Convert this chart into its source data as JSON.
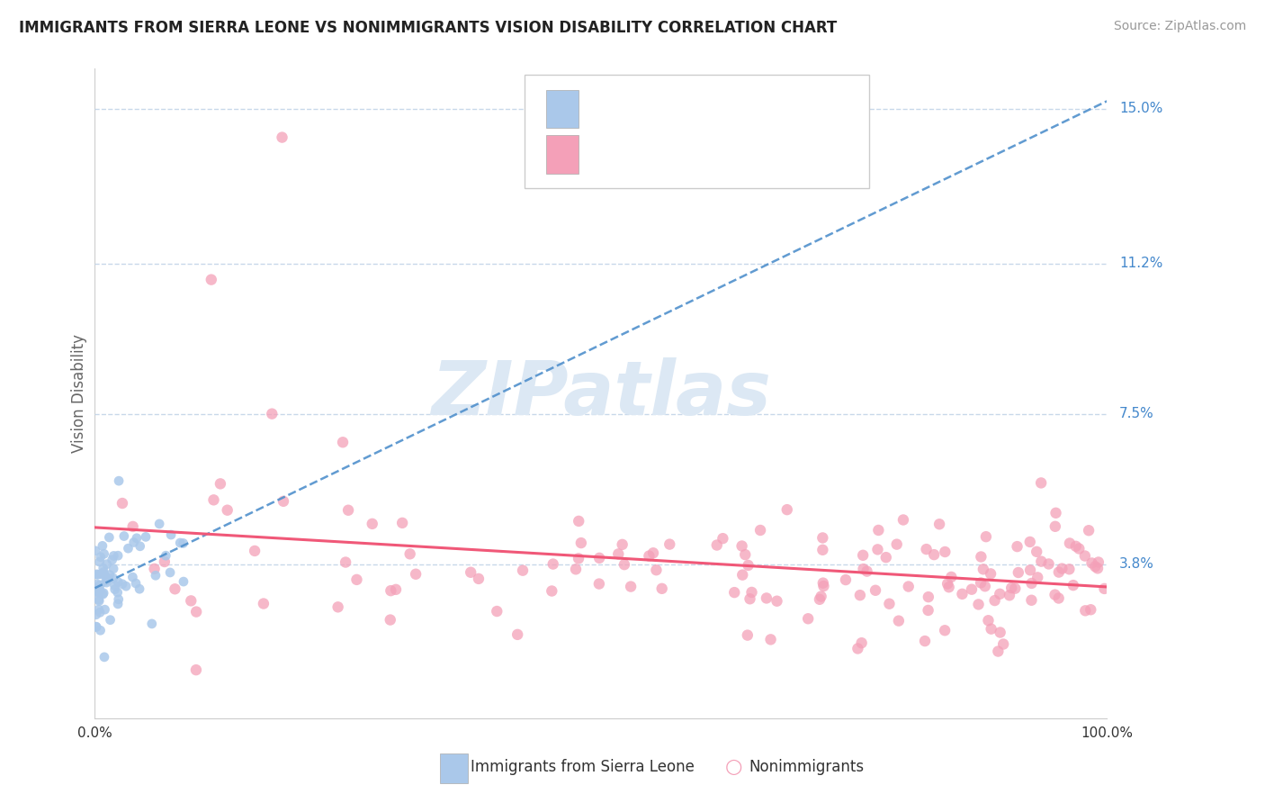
{
  "title": "IMMIGRANTS FROM SIERRA LEONE VS NONIMMIGRANTS VISION DISABILITY CORRELATION CHART",
  "source": "Source: ZipAtlas.com",
  "ylabel": "Vision Disability",
  "xlim": [
    0.0,
    1.0
  ],
  "ylim": [
    0.0,
    0.16
  ],
  "yticks": [
    0.038,
    0.075,
    0.112,
    0.15
  ],
  "ytick_labels": [
    "3.8%",
    "7.5%",
    "11.2%",
    "15.0%"
  ],
  "color_blue_scatter": "#aac8ea",
  "color_pink_scatter": "#f4a0b8",
  "color_blue_line": "#5090cc",
  "color_pink_line": "#f05878",
  "color_blue_text": "#4488cc",
  "color_black_text": "#222222",
  "color_grid": "#c8d8ea",
  "color_source": "#999999",
  "color_ylabel": "#666666",
  "watermark_color": "#dce8f4",
  "seed": 42
}
